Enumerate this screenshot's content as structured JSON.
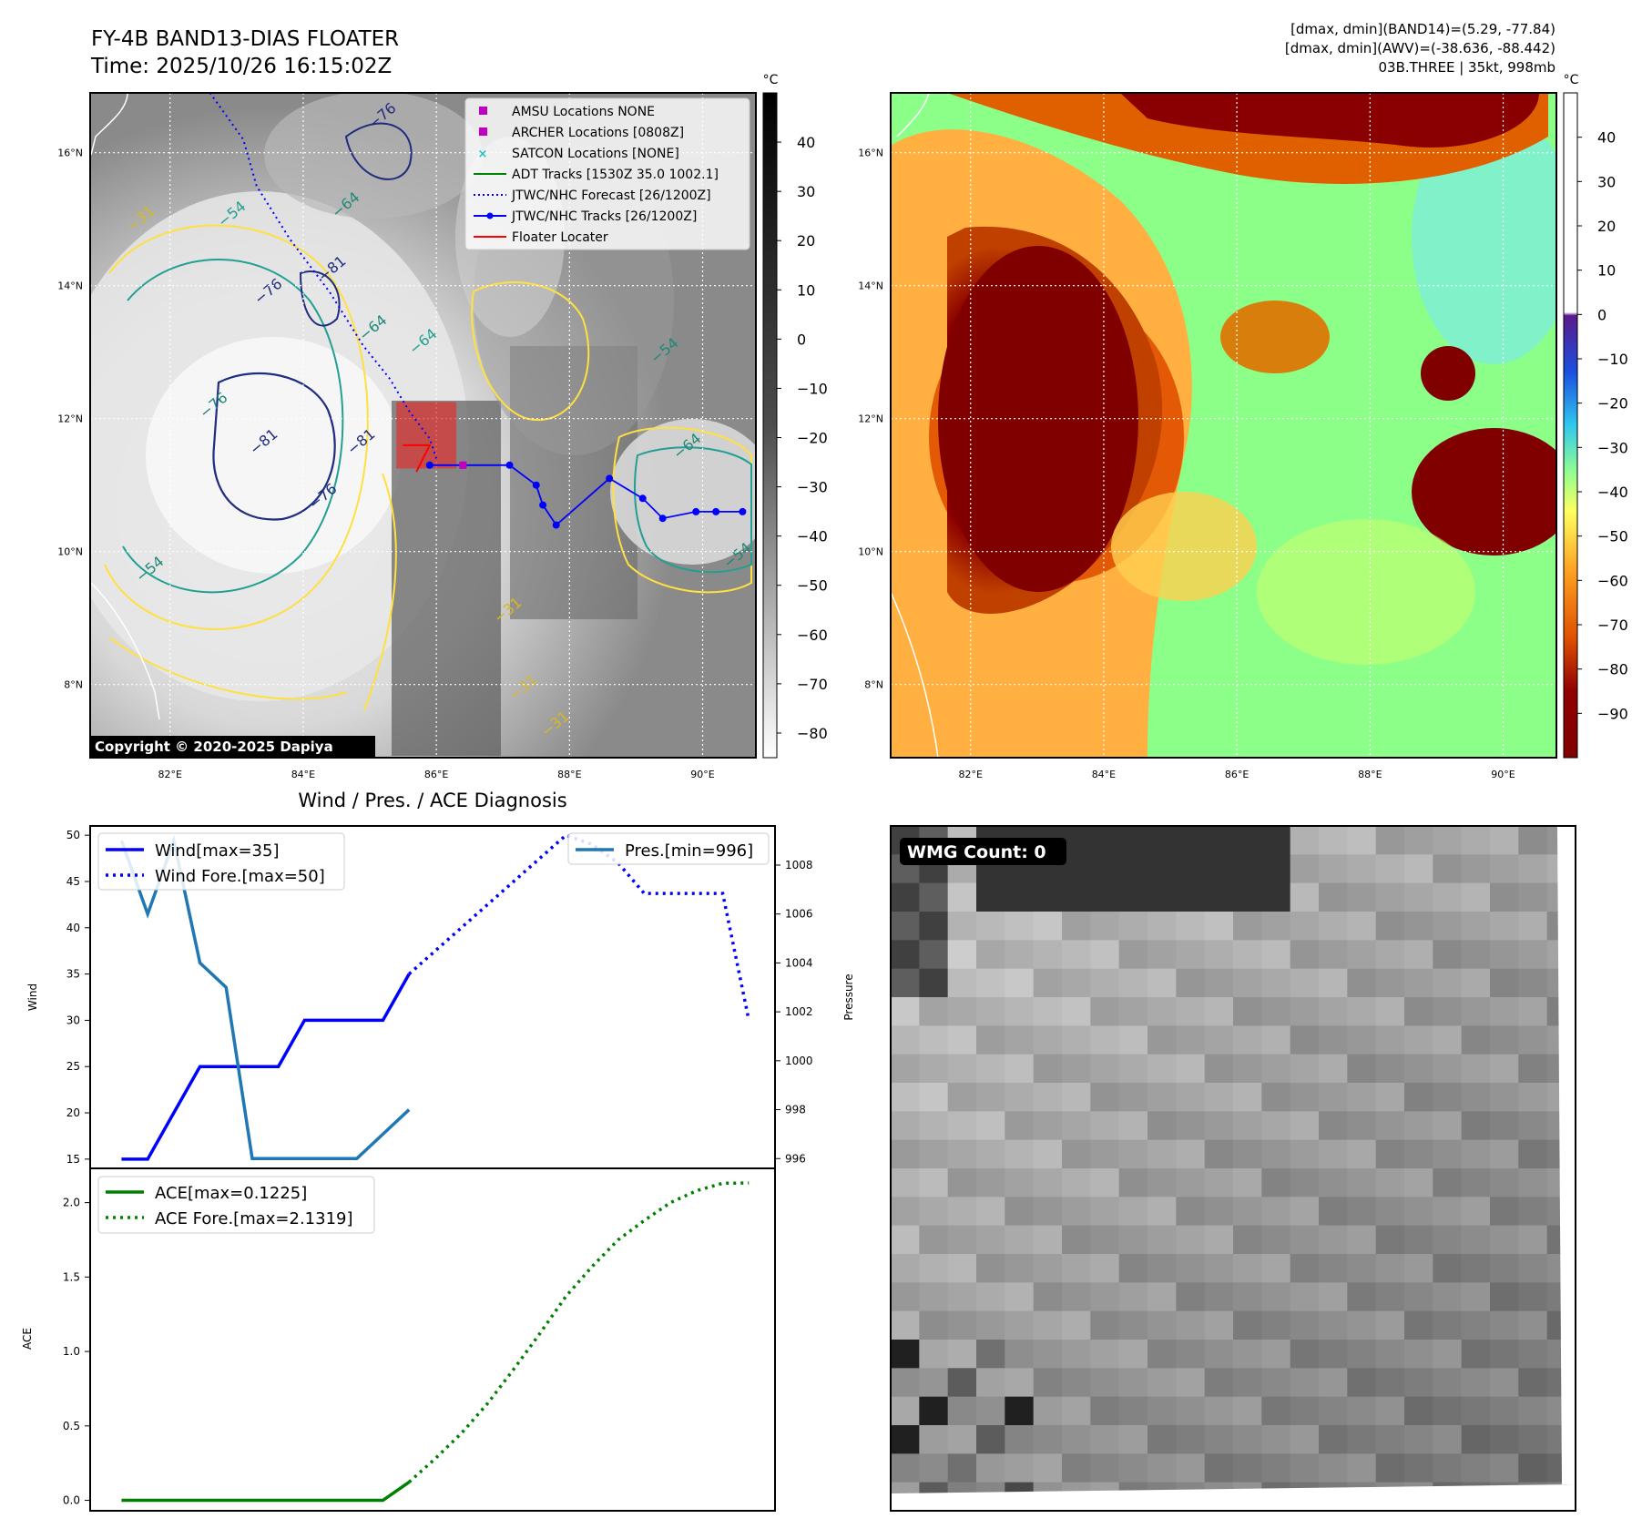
{
  "header": {
    "title_line1": "FY-4B BAND13-DIAS FLOATER",
    "title_line2": "Time: 2025/10/26 16:15:02Z",
    "right_line1": "[dmax, dmin](BAND14)=(5.29, -77.84)",
    "right_line2": "[dmax, dmin](AWV)=(-38.636, -88.442)",
    "right_line3": "03B.THREE | 35kt, 998mb"
  },
  "maps": {
    "lat_ticks": [
      "16°N",
      "14°N",
      "12°N",
      "10°N",
      "8°N"
    ],
    "lat_values": [
      16,
      14,
      12,
      10,
      8
    ],
    "lon_ticks": [
      "82°E",
      "84°E",
      "86°E",
      "88°E",
      "90°E"
    ],
    "lon_values": [
      82,
      84,
      86,
      88,
      90
    ],
    "extent": {
      "lon_min": 80.8,
      "lon_max": 90.8,
      "lat_min": 6.9,
      "lat_max": 16.9
    },
    "ir_colorbar": {
      "unit": "°C",
      "ticks": [
        "40",
        "30",
        "20",
        "10",
        "0",
        "−10",
        "−20",
        "−30",
        "−40",
        "−50",
        "−60",
        "−70",
        "−80"
      ],
      "values": [
        40,
        30,
        20,
        10,
        0,
        -10,
        -20,
        -30,
        -40,
        -50,
        -60,
        -70,
        -80
      ],
      "range": [
        -85,
        50
      ]
    },
    "wv_colorbar": {
      "unit": "°C",
      "ticks": [
        "40",
        "30",
        "20",
        "10",
        "0",
        "−10",
        "−20",
        "−30",
        "−40",
        "−50",
        "−60",
        "−70",
        "−80",
        "−90"
      ],
      "values": [
        40,
        30,
        20,
        10,
        0,
        -10,
        -20,
        -30,
        -40,
        -50,
        -60,
        -70,
        -80,
        -90
      ],
      "range": [
        -100,
        50
      ]
    },
    "copyright": "Copyright © 2020-2025 Dapiya",
    "contour_labels": [
      "−76",
      "−31",
      "−54",
      "−64",
      "−81",
      "−76",
      "−64",
      "−76",
      "−81",
      "−76",
      "−81",
      "−54",
      "−64",
      "−64",
      "−54",
      "−54",
      "−31",
      "−31",
      "−31"
    ],
    "legend": [
      {
        "label": "AMSU Locations NONE",
        "marker": "square",
        "color": "#c000c0"
      },
      {
        "label": "ARCHER Locations [0808Z]",
        "marker": "square",
        "color": "#c000c0"
      },
      {
        "label": "SATCON Locations [NONE]",
        "marker": "x",
        "color": "#20c0c0"
      },
      {
        "label": "ADT Tracks [1530Z 35.0 1002.1]",
        "marker": "line",
        "color": "#008000"
      },
      {
        "label": "JTWC/NHC Forecast [26/1200Z]",
        "marker": "dotted",
        "color": "#0000ff"
      },
      {
        "label": "JTWC/NHC Tracks [26/1200Z]",
        "marker": "line-dot",
        "color": "#0000ff"
      },
      {
        "label": "Floater Locater",
        "marker": "line",
        "color": "#ff0000"
      }
    ],
    "track_points": [
      [
        85.9,
        11.3
      ],
      [
        86.4,
        11.3
      ],
      [
        87.1,
        11.3
      ],
      [
        87.5,
        11.0
      ],
      [
        87.6,
        10.7
      ],
      [
        87.8,
        10.4
      ],
      [
        88.6,
        11.1
      ],
      [
        89.1,
        10.8
      ],
      [
        89.4,
        10.5
      ],
      [
        89.9,
        10.6
      ],
      [
        90.2,
        10.6
      ],
      [
        90.6,
        10.6
      ]
    ],
    "forecast_points": [
      [
        82.6,
        16.9
      ],
      [
        83.1,
        16.2
      ],
      [
        83.3,
        15.5
      ],
      [
        83.8,
        14.7
      ],
      [
        84.4,
        13.9
      ],
      [
        84.9,
        13.1
      ],
      [
        85.3,
        12.6
      ],
      [
        85.6,
        12.1
      ],
      [
        85.9,
        11.7
      ],
      [
        86.0,
        11.4
      ]
    ],
    "floater_points": [
      [
        85.5,
        11.6
      ],
      [
        85.9,
        11.6
      ],
      [
        85.7,
        11.2
      ]
    ],
    "archer_point": [
      86.4,
      11.3
    ],
    "wmg_label": "WMG Count: 0"
  },
  "chart_data": [
    {
      "type": "line",
      "title": "Wind / Pres. / ACE Diagnosis",
      "x": [
        0,
        1,
        2,
        3,
        4,
        5,
        6,
        7,
        8,
        9,
        10,
        11
      ],
      "series": [
        {
          "name": "Wind[max=35]",
          "values": [
            15,
            15,
            20,
            25,
            25,
            25,
            25,
            30,
            30,
            30,
            30,
            35
          ],
          "color": "#0000ff",
          "style": "solid",
          "axis": "left"
        },
        {
          "name": "Wind Fore.[max=50]",
          "x": [
            11,
            12,
            13,
            14,
            15,
            16,
            17,
            18,
            19,
            20,
            21,
            22,
            23,
            24
          ],
          "values": [
            35,
            37.5,
            40,
            42.5,
            45,
            47.5,
            50,
            49,
            47,
            43.7,
            43.7,
            43.7,
            43.7,
            30
          ],
          "color": "#0000ff",
          "style": "dotted",
          "axis": "left"
        },
        {
          "name": "Pres.[min=996]",
          "values": [
            1009,
            1006,
            1009,
            1004,
            1003,
            996,
            996,
            996,
            996,
            996,
            997,
            998
          ],
          "color": "#1f77b4",
          "style": "solid",
          "axis": "right"
        }
      ],
      "x_range": [
        -1.2,
        25
      ],
      "ylabel": "Wind",
      "ylim": [
        14,
        51
      ],
      "yticks": [
        15,
        20,
        25,
        30,
        35,
        40,
        45,
        50
      ],
      "y2label": "Pressure",
      "y2lim": [
        995.6,
        1009.6
      ],
      "y2ticks": [
        996,
        998,
        1000,
        1002,
        1004,
        1006,
        1008
      ]
    },
    {
      "type": "line",
      "x": [
        0,
        1,
        2,
        3,
        4,
        5,
        6,
        7,
        8,
        9,
        10,
        11
      ],
      "series": [
        {
          "name": "ACE[max=0.1225]",
          "values": [
            0,
            0,
            0,
            0,
            0,
            0,
            0,
            0,
            0,
            0,
            0,
            0.1225
          ],
          "color": "#008000",
          "style": "solid"
        },
        {
          "name": "ACE Fore.[max=2.1319]",
          "x": [
            11,
            12,
            13,
            14,
            15,
            16,
            17,
            18,
            19,
            20,
            21,
            22,
            23,
            24
          ],
          "values": [
            0.1225,
            0.28,
            0.45,
            0.65,
            0.88,
            1.12,
            1.37,
            1.57,
            1.75,
            1.88,
            2.0,
            2.08,
            2.13,
            2.1319
          ],
          "color": "#008000",
          "style": "dotted"
        }
      ],
      "x_range": [
        -1.2,
        25
      ],
      "ylabel": "ACE",
      "ylim": [
        -0.07,
        2.23
      ],
      "yticks": [
        0.0,
        0.5,
        1.0,
        1.5,
        2.0
      ],
      "ytick_labels": [
        "0.0",
        "0.5",
        "1.0",
        "1.5",
        "2.0"
      ]
    }
  ]
}
